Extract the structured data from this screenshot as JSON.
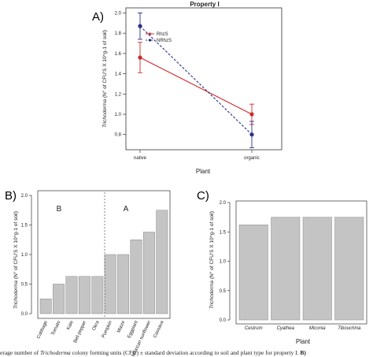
{
  "chart_data": [
    {
      "panel": "A)",
      "type": "line",
      "title": "Property I",
      "xlabel": "Plant",
      "ylabel_italic": "Trichoderma",
      "ylabel_rest": "(N° of CFU'S X 10^g-1 of soil)",
      "categories": [
        "native",
        "organic"
      ],
      "ylim": [
        0.65,
        2.05
      ],
      "yticks": [
        "0.8",
        "1.0",
        "1.2",
        "1.4",
        "1.6",
        "1.8",
        "2.0"
      ],
      "legend": {
        "position": "top-center",
        "entries": [
          "RhzS",
          "NRhzS"
        ]
      },
      "series": [
        {
          "name": "RhzS",
          "color": "#cc2b2b",
          "style": "solid",
          "values": [
            1.56,
            1.0
          ],
          "err": [
            0.15,
            0.1
          ]
        },
        {
          "name": "NRhzS",
          "color": "#2a2f86",
          "style": "dashed",
          "values": [
            1.87,
            0.8
          ],
          "err": [
            0.13,
            0.13
          ]
        }
      ]
    },
    {
      "panel": "B)",
      "type": "bar",
      "ylabel_italic": "Trichoderma",
      "ylabel_rest": "(N° of CFU'S X 10^g-1 of soil)",
      "ylim": [
        0,
        2.0
      ],
      "yticks": [
        "0.0",
        "0.5",
        "1.0",
        "1.5",
        "2.0"
      ],
      "group_labels": [
        "B",
        "A"
      ],
      "categories": [
        "Cabbage",
        "Tomato",
        "Kale",
        "Bell pepper",
        "Okra",
        "Pumpkin",
        "Maize",
        "Eggplant",
        "Mexican sunflower",
        "Cassava"
      ],
      "values": [
        0.25,
        0.5,
        0.63,
        0.63,
        0.63,
        1.0,
        1.0,
        1.25,
        1.38,
        1.75
      ],
      "bar_color": "#c4c4c4"
    },
    {
      "panel": "C)",
      "type": "bar",
      "xlabel": "Plant",
      "ylabel_italic": "Trichoderma",
      "ylabel_rest": "(N° of CFU'S X 10^g-1 of soil)",
      "ylim": [
        0,
        2.0
      ],
      "yticks": [
        "0.0",
        "0.5",
        "1.0",
        "1.5",
        "2.0"
      ],
      "categories": [
        "Cestrum",
        "Cyathea",
        "Miconia",
        "Tibouchina"
      ],
      "values": [
        1.62,
        1.75,
        1.75,
        1.75
      ],
      "bar_color": "#c4c4c4"
    }
  ],
  "caption": {
    "pre": "erage number of ",
    "italic": "Trichoderma",
    "post": " colony forming units (CFU) ± standard deviation according to soil and plant type for property I. ",
    "bold": "B)"
  }
}
